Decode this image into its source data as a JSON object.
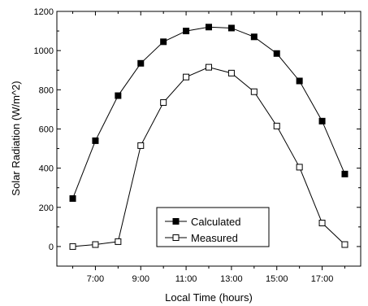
{
  "chart_data": {
    "type": "line",
    "xlabel": "Local Time (hours)",
    "ylabel": "Solar Radiation (W/m^2)",
    "xlim": [
      5.3,
      18.7
    ],
    "ylim": [
      -100,
      1200
    ],
    "x": [
      6,
      7,
      8,
      9,
      10,
      11,
      12,
      13,
      14,
      15,
      16,
      17,
      18
    ],
    "x_ticks": [
      {
        "value": 7,
        "label": "7:00"
      },
      {
        "value": 9,
        "label": "9:00"
      },
      {
        "value": 11,
        "label": "11:00"
      },
      {
        "value": 13,
        "label": "13:00"
      },
      {
        "value": 15,
        "label": "15:00"
      },
      {
        "value": 17,
        "label": "17:00"
      }
    ],
    "y_ticks": [
      0,
      200,
      400,
      600,
      800,
      1000,
      1200
    ],
    "legend_position": "bottom-center",
    "series": [
      {
        "name": "Calculated",
        "marker": "filled-square",
        "color": "#000000",
        "values": [
          245,
          540,
          770,
          935,
          1045,
          1100,
          1120,
          1115,
          1070,
          985,
          845,
          640,
          370
        ]
      },
      {
        "name": "Measured",
        "marker": "open-square",
        "color": "#000000",
        "values": [
          0,
          10,
          25,
          515,
          735,
          865,
          915,
          885,
          790,
          615,
          405,
          120,
          10
        ]
      }
    ]
  }
}
